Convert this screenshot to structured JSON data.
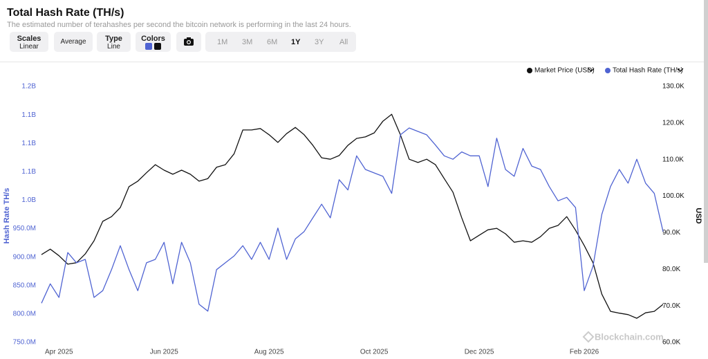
{
  "header": {
    "title": "Total Hash Rate (TH/s)",
    "subtitle": "The estimated number of terahashes per second the bitcoin network is performing in the last 24 hours."
  },
  "controls": {
    "scales": {
      "label": "Scales",
      "value": "Linear"
    },
    "average": "Average",
    "type": {
      "label": "Type",
      "value": "Line"
    },
    "colors": "Colors",
    "ranges": [
      "1M",
      "3M",
      "6M",
      "1Y",
      "3Y",
      "All"
    ],
    "selected_range": "1Y"
  },
  "watermark": "Blockchain.com",
  "chart_data": {
    "type": "line",
    "y_label": "Hash Rate TH/s",
    "y2_label": "USD",
    "categories": [
      null,
      null,
      "Apr 2025",
      null,
      null,
      null,
      null,
      null,
      null,
      null,
      null,
      null,
      null,
      null,
      "Jun 2025",
      null,
      null,
      null,
      null,
      null,
      null,
      null,
      null,
      null,
      null,
      null,
      "Aug 2025",
      null,
      null,
      null,
      null,
      null,
      null,
      null,
      null,
      null,
      null,
      null,
      "Oct 2025",
      null,
      null,
      null,
      null,
      null,
      null,
      null,
      null,
      null,
      null,
      null,
      "Dec 2025",
      null,
      null,
      null,
      null,
      null,
      null,
      null,
      null,
      null,
      null,
      null,
      "Feb 2026",
      null,
      null,
      null,
      null,
      null,
      null,
      null,
      null,
      null
    ],
    "series": [
      {
        "name": "Market Price (USD)",
        "color": "#111111",
        "axis": "y2",
        "values": [
          84000,
          85500,
          83700,
          81400,
          81800,
          84200,
          87800,
          93100,
          94400,
          96900,
          102600,
          104100,
          106400,
          108600,
          107100,
          106000,
          107100,
          106000,
          104100,
          104800,
          107900,
          108600,
          111600,
          118100,
          118100,
          118500,
          116800,
          114700,
          117100,
          118800,
          116800,
          113900,
          110500,
          110100,
          111100,
          113900,
          115800,
          116200,
          117300,
          120500,
          122400,
          116800,
          110100,
          109200,
          110100,
          108600,
          104800,
          101100,
          94100,
          87800,
          89300,
          90800,
          91200,
          89700,
          87400,
          87800,
          87400,
          88900,
          91200,
          92000,
          94400,
          90700,
          86500,
          81800,
          73200,
          68500,
          68000,
          67600,
          66600,
          68100,
          68500,
          70400
        ]
      },
      {
        "name": "Total Hash Rate (TH/s)",
        "color": "#4f63d2",
        "values": [
          819000000,
          853000000,
          829000000,
          908000000,
          890000000,
          896000000,
          829000000,
          841000000,
          878000000,
          920000000,
          878000000,
          841000000,
          890000000,
          896000000,
          926000000,
          853000000,
          926000000,
          890000000,
          817000000,
          805000000,
          878000000,
          890000000,
          902000000,
          920000000,
          896000000,
          926000000,
          896000000,
          951000000,
          896000000,
          932000000,
          945000000,
          969000000,
          993000000,
          969000000,
          1036000000,
          1018000000,
          1078000000,
          1054000000,
          1048000000,
          1042000000,
          1012000000,
          1115000000,
          1127000000,
          1121000000,
          1115000000,
          1097000000,
          1078000000,
          1072000000,
          1085000000,
          1078000000,
          1078000000,
          1024000000,
          1109000000,
          1054000000,
          1042000000,
          1091000000,
          1060000000,
          1054000000,
          1024000000,
          999000000,
          1005000000,
          987000000,
          841000000,
          884000000,
          975000000,
          1024000000,
          1054000000,
          1030000000,
          1072000000,
          1030000000,
          1012000000,
          945000000
        ]
      }
    ],
    "ylim": [
      750000000,
      1200000000
    ],
    "yticks": [
      {
        "value": 750000000,
        "label": "750.0M"
      },
      {
        "value": 800000000,
        "label": "800.0M"
      },
      {
        "value": 850000000,
        "label": "850.0M"
      },
      {
        "value": 900000000,
        "label": "900.0M"
      },
      {
        "value": 950000000,
        "label": "950.0M"
      },
      {
        "value": 1000000000,
        "label": "1.0B"
      },
      {
        "value": 1050000000,
        "label": "1.1B"
      },
      {
        "value": 1100000000,
        "label": "1.1B"
      },
      {
        "value": 1150000000,
        "label": "1.1B"
      },
      {
        "value": 1200000000,
        "label": "1.2B"
      }
    ],
    "y2lim": [
      60000,
      130000
    ],
    "y2ticks": [
      {
        "value": 60000,
        "label": "60.0K"
      },
      {
        "value": 70000,
        "label": "70.0K"
      },
      {
        "value": 80000,
        "label": "80.0K"
      },
      {
        "value": 90000,
        "label": "90.0K"
      },
      {
        "value": 100000,
        "label": "100.0K"
      },
      {
        "value": 110000,
        "label": "110.0K"
      },
      {
        "value": 120000,
        "label": "120.0K"
      },
      {
        "value": 130000,
        "label": "130.0K"
      }
    ],
    "grid": false,
    "legend": "top-right"
  }
}
